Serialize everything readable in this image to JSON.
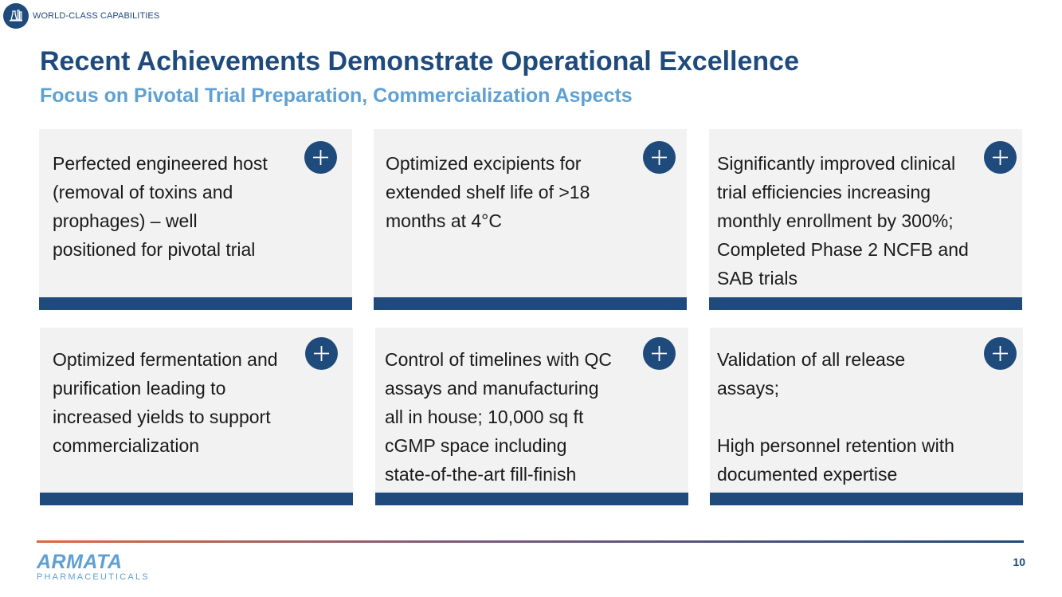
{
  "header": {
    "section_label": "WORLD-CLASS CAPABILITIES",
    "section_icon": "lab-flask-icon",
    "title": "Recent Achievements Demonstrate Operational Excellence",
    "subtitle": "Focus on Pivotal Trial Preparation, Commercialization Aspects"
  },
  "cards": [
    {
      "text": "Perfected engineered host\n(removal of toxins and\nprophages) – well\npositioned for pivotal trial",
      "icon": "plus-icon"
    },
    {
      "text": "Optimized excipients for\nextended shelf life of >18\nmonths at 4°C",
      "icon": "plus-icon"
    },
    {
      "text": "Significantly improved clinical\ntrial efficiencies increasing\nmonthly enrollment by 300%;\nCompleted Phase 2 NCFB and\nSAB trials",
      "icon": "plus-icon"
    },
    {
      "text": "Optimized fermentation and\npurification leading to\nincreased yields to support\ncommercialization",
      "icon": "plus-icon"
    },
    {
      "text": "Control of timelines with QC\nassays and manufacturing\nall in house; 10,000 sq ft\ncGMP space including\nstate-of-the-art fill-finish",
      "icon": "plus-icon"
    },
    {
      "text": "Validation of all release\nassays;\n\nHigh personnel retention with\ndocumented expertise",
      "icon": "plus-icon"
    }
  ],
  "footer": {
    "logo_main": "ARMATA",
    "logo_sub": "PHARMACEUTICALS",
    "page_number": "10"
  },
  "colors": {
    "primary": "#1f4a7c",
    "accent": "#5fa0d3",
    "card_bg": "#f2f2f2",
    "rule_start": "#e0683a"
  }
}
